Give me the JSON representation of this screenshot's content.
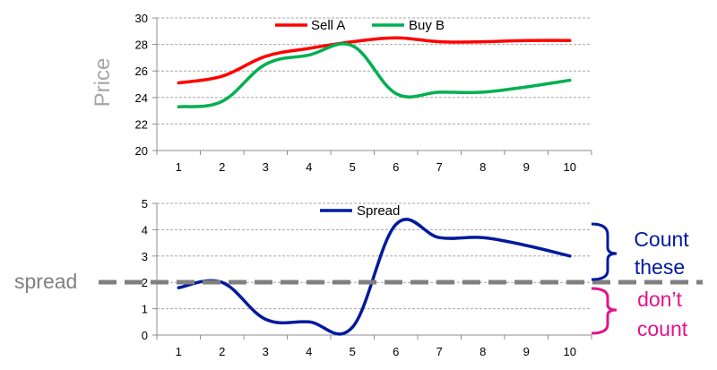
{
  "colors": {
    "sell_a": "#ff0000",
    "buy_b": "#00b050",
    "spread": "#001a9c",
    "threshold": "#808080",
    "count_annotation": "#001a9c",
    "dont_count_annotation": "#e0148c",
    "grid": "#a6a6a6",
    "axis": "#8c8c8c"
  },
  "chart_data": [
    {
      "type": "line",
      "title": "",
      "xlabel": "",
      "ylabel": "Price",
      "x": [
        1,
        2,
        3,
        4,
        5,
        6,
        7,
        8,
        9,
        10
      ],
      "xlim": [
        0.5,
        10.5
      ],
      "ylim": [
        20,
        30
      ],
      "yticks": [
        20,
        22,
        24,
        26,
        28,
        30
      ],
      "grid": "horizontal dashed",
      "legend_position": "top-center",
      "series": [
        {
          "name": "Sell A",
          "color": "#ff0000",
          "values": [
            25.1,
            25.6,
            27.1,
            27.7,
            28.2,
            28.5,
            28.2,
            28.2,
            28.3,
            28.3
          ]
        },
        {
          "name": "Buy B",
          "color": "#00b050",
          "values": [
            23.3,
            23.7,
            26.5,
            27.2,
            27.9,
            24.3,
            24.4,
            24.4,
            24.8,
            25.3
          ]
        }
      ]
    },
    {
      "type": "line",
      "title": "",
      "xlabel": "",
      "ylabel": "",
      "x": [
        1,
        2,
        3,
        4,
        5,
        6,
        7,
        8,
        9,
        10
      ],
      "xlim": [
        0.5,
        10.5
      ],
      "ylim": [
        0,
        5
      ],
      "yticks": [
        0,
        1,
        2,
        3,
        4,
        5
      ],
      "grid": "horizontal dashed",
      "legend_position": "top-center",
      "series": [
        {
          "name": "Spread",
          "color": "#001a9c",
          "values": [
            1.8,
            2.0,
            0.6,
            0.5,
            0.3,
            4.2,
            3.7,
            3.7,
            3.4,
            3.0
          ]
        }
      ],
      "annotations": {
        "threshold_label": "spread",
        "threshold_value": 2,
        "count_label_line1": "Count",
        "count_label_line2": "these",
        "dont_count_label_line1": "don’t",
        "dont_count_label_line2": "count"
      }
    }
  ]
}
